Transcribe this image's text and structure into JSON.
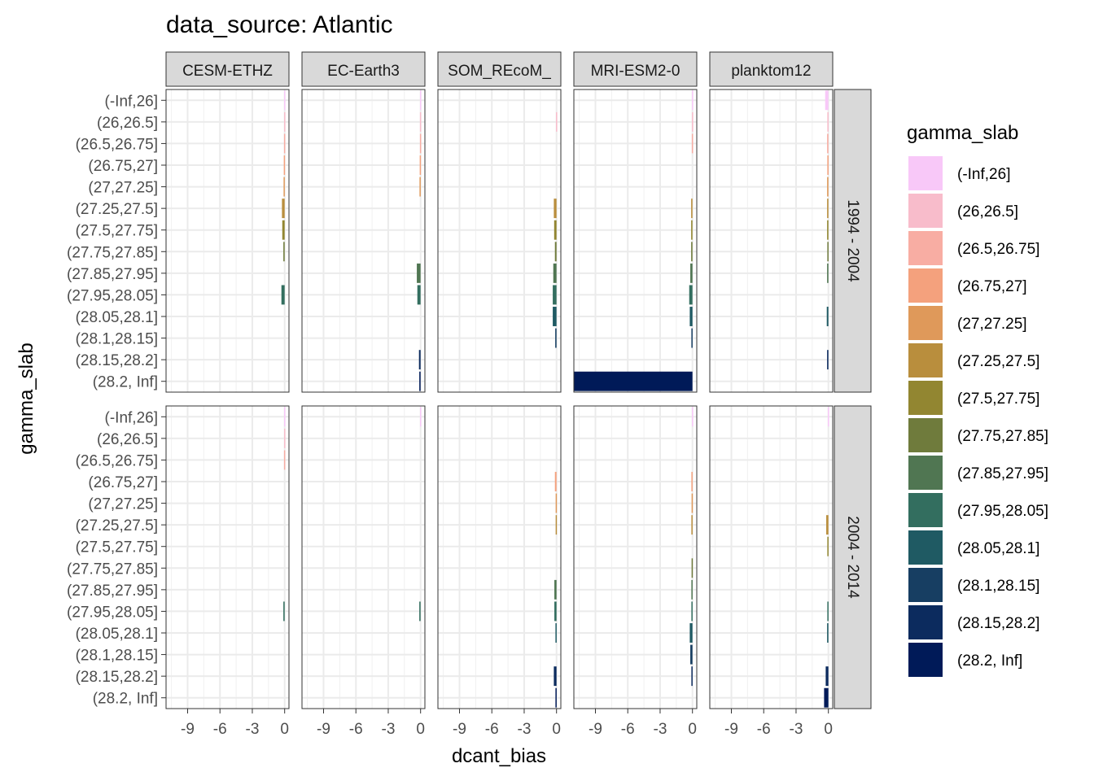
{
  "chart_data": {
    "type": "bar",
    "orientation": "horizontal",
    "title": "data_source: Atlantic",
    "xlabel": "dcant_bias",
    "ylabel": "gamma_slab",
    "xlim": [
      -11,
      0.4
    ],
    "x_ticks": [
      -9,
      -6,
      -3,
      0
    ],
    "x_tick_labels": [
      "-9",
      "-6",
      "-3",
      "0"
    ],
    "grid": true,
    "legend_position": "right",
    "legend_title": "gamma_slab",
    "categories": [
      "(-Inf,26]",
      "(26,26.5]",
      "(26.5,26.75]",
      "(26.75,27]",
      "(27,27.25]",
      "(27.25,27.5]",
      "(27.5,27.75]",
      "(27.75,27.85]",
      "(27.85,27.95]",
      "(27.95,28.05]",
      "(28.05,28.1]",
      "(28.1,28.15]",
      "(28.15,28.2]",
      "(28.2, Inf]"
    ],
    "colors": [
      "#f8c8f8",
      "#f8bccb",
      "#f8ada3",
      "#f4a17d",
      "#df995a",
      "#b98e3d",
      "#928631",
      "#6f7b3c",
      "#507652",
      "#336e5f",
      "#1f5a63",
      "#173e62",
      "#0c2b5e",
      "#001a58"
    ],
    "columns": [
      "CESM-ETHZ",
      "EC-Earth3",
      "FESOM_REcoM_LR",
      "MRI-ESM2-0",
      "planktom12"
    ],
    "column_labels": [
      "CESM-ETHZ",
      "EC-Earth3",
      "SOM_REcoM_",
      "MRI-ESM2-0",
      "planktom12"
    ],
    "rows": [
      "1994 - 2004",
      "2004 - 2014"
    ],
    "panels": [
      [
        {
          "values": [
            -0.05,
            -0.05,
            -0.06,
            -0.08,
            -0.1,
            -0.25,
            -0.22,
            -0.12,
            0,
            -0.3,
            0,
            0,
            0,
            0
          ]
        },
        {
          "values": [
            -0.05,
            -0.06,
            -0.06,
            -0.08,
            -0.1,
            0,
            0,
            0,
            -0.35,
            -0.3,
            0,
            0,
            -0.15,
            -0.12
          ]
        },
        {
          "values": [
            0,
            -0.05,
            0,
            0,
            0,
            -0.25,
            -0.22,
            -0.15,
            -0.3,
            -0.35,
            -0.35,
            -0.12,
            0,
            0
          ]
        },
        {
          "values": [
            -0.05,
            -0.05,
            -0.06,
            0,
            0,
            -0.12,
            -0.12,
            -0.12,
            -0.2,
            -0.3,
            -0.25,
            -0.1,
            0,
            -11.0
          ]
        },
        {
          "values": [
            -0.3,
            -0.1,
            -0.12,
            -0.1,
            -0.12,
            -0.12,
            -0.12,
            -0.1,
            -0.12,
            0,
            -0.15,
            0,
            -0.12,
            0
          ]
        }
      ],
      [
        {
          "values": [
            -0.05,
            -0.05,
            -0.06,
            0,
            0,
            0,
            0,
            0,
            0,
            -0.12,
            0,
            0,
            0,
            0
          ]
        },
        {
          "values": [
            -0.05,
            0,
            0,
            0,
            0,
            0,
            0,
            0,
            0,
            -0.12,
            0,
            0,
            0,
            0
          ]
        },
        {
          "values": [
            0,
            0,
            0,
            -0.15,
            -0.08,
            -0.08,
            0,
            0,
            -0.2,
            -0.2,
            -0.1,
            0,
            -0.25,
            -0.1
          ]
        },
        {
          "values": [
            -0.05,
            0,
            0,
            -0.1,
            -0.08,
            -0.1,
            0,
            -0.08,
            -0.1,
            -0.1,
            -0.25,
            -0.2,
            -0.1,
            0
          ]
        },
        {
          "values": [
            -0.05,
            0,
            0,
            0,
            0,
            -0.2,
            -0.1,
            0,
            0,
            -0.1,
            -0.12,
            0,
            -0.25,
            -0.4
          ]
        }
      ]
    ]
  }
}
